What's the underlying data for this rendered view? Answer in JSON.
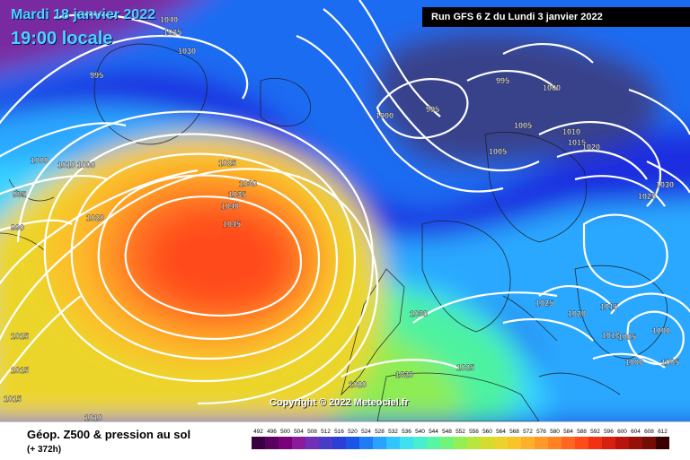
{
  "header": {
    "date": "Mardi 18 janvier 2022",
    "time": "19:00 locale",
    "run": "Run GFS 6 Z du Lundi 3 janvier 2022"
  },
  "copyright": "Copyright © 2022 Meteociel.fr",
  "footer": {
    "title": "Géop. Z500 & pression au sol",
    "subtitle": "(+ 372h)"
  },
  "legend": {
    "values": [
      "492",
      "496",
      "500",
      "504",
      "508",
      "512",
      "516",
      "520",
      "524",
      "528",
      "532",
      "536",
      "540",
      "544",
      "548",
      "552",
      "556",
      "560",
      "564",
      "568",
      "572",
      "576",
      "580",
      "584",
      "588",
      "592",
      "596",
      "600",
      "604",
      "608",
      "612"
    ],
    "colors": [
      "#3a0040",
      "#5a005f",
      "#7a007a",
      "#8c1a9c",
      "#6f2fb6",
      "#4a3bc6",
      "#2b3fd6",
      "#1a55e8",
      "#1f7cf5",
      "#2aa3ff",
      "#31c6ff",
      "#3fe0f0",
      "#48efcf",
      "#58f5a5",
      "#70f57a",
      "#94ef55",
      "#b8e63c",
      "#d6dc2e",
      "#ecd22a",
      "#f9c42a",
      "#ffb02a",
      "#ff9a28",
      "#ff8124",
      "#ff6620",
      "#ff4a1a",
      "#f23014",
      "#d8200f",
      "#b8140c",
      "#961008",
      "#740c06",
      "#3a0000"
    ]
  },
  "map": {
    "colors": {
      "dark_low": "#3a3f80",
      "deep_blue": "#1b2ee0",
      "blue": "#1f6cf2",
      "light_blue": "#2ca8ff",
      "cyan": "#36d4ff",
      "teal": "#3de8d5",
      "green": "#4ef2a0",
      "lime": "#8eec54",
      "yellow_green": "#c8e23a",
      "yellow": "#ecd52c",
      "light_orange": "#fbbf2a",
      "orange": "#ff9a28",
      "red_orange": "#ff6a22",
      "red": "#ff4b1c",
      "purple": "#7a2aa0",
      "land": "#2a2a2a"
    },
    "isobar_labels": [
      "1040",
      "1035",
      "1030",
      "995",
      "1000",
      "1010",
      "1000",
      "995",
      "990",
      "1020",
      "1015",
      "1015",
      "1015",
      "1010",
      "1025",
      "1030",
      "1035",
      "1040",
      "1045",
      "1000",
      "995",
      "995",
      "1000",
      "1005",
      "1005",
      "1010",
      "1015",
      "1020",
      "1025",
      "1030",
      "1030",
      "1025",
      "1020",
      "1015",
      "1010",
      "1005",
      "1000",
      "1000",
      "1005",
      "1020",
      "1020",
      "1025"
    ]
  }
}
